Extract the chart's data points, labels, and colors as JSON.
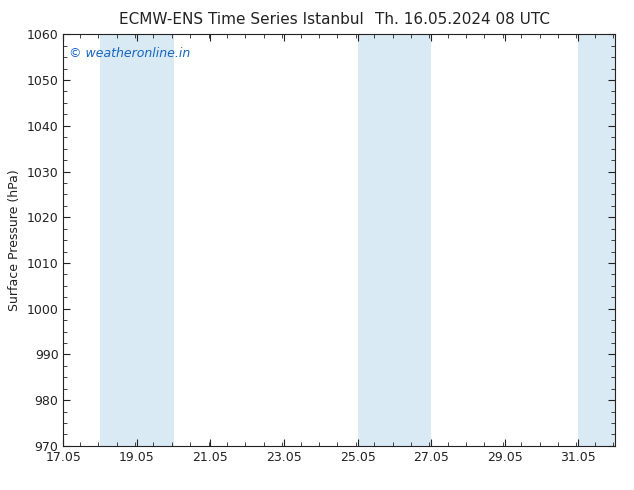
{
  "title_left": "ECMW-ENS Time Series Istanbul",
  "title_right": "Th. 16.05.2024 08 UTC",
  "ylabel": "Surface Pressure (hPa)",
  "ylim": [
    970,
    1060
  ],
  "yticks": [
    970,
    980,
    990,
    1000,
    1010,
    1020,
    1030,
    1040,
    1050,
    1060
  ],
  "xlim_start": 17.05,
  "xlim_end": 32.05,
  "xtick_labels": [
    "17.05",
    "19.05",
    "21.05",
    "23.05",
    "25.05",
    "27.05",
    "29.05",
    "31.05"
  ],
  "xtick_positions": [
    17.05,
    19.05,
    21.05,
    23.05,
    25.05,
    27.05,
    29.05,
    31.05
  ],
  "shaded_bands": [
    {
      "x_start": 18.05,
      "x_end": 20.05
    },
    {
      "x_start": 25.05,
      "x_end": 27.05
    },
    {
      "x_start": 31.05,
      "x_end": 32.05
    }
  ],
  "band_color": "#daeaf5",
  "watermark_text": "© weatheronline.in",
  "watermark_color": "#1565c0",
  "background_color": "#ffffff",
  "title_color": "#222222",
  "tick_color": "#222222",
  "border_color": "#222222",
  "title_fontsize": 11,
  "ylabel_fontsize": 9,
  "tick_fontsize": 9
}
